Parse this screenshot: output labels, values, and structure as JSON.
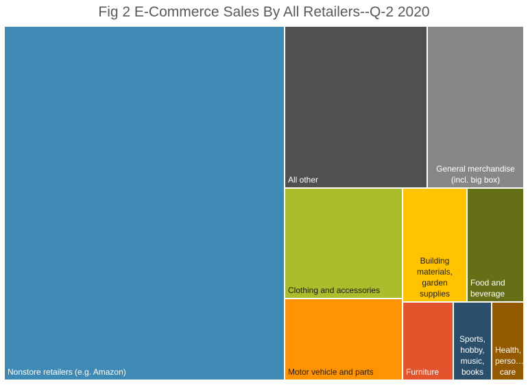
{
  "chart_data": {
    "type": "treemap",
    "title": "Fig 2 E-Commerce Sales By All Retailers--Q-2 2020",
    "items": [
      {
        "label": "Nonstore retailers (e.g. Amazon)",
        "color": "#3E8AB5",
        "text_color": "#ffffff"
      },
      {
        "label": "All other",
        "color": "#505050",
        "text_color": "#ffffff"
      },
      {
        "label": "General merchandise (incl. big box)",
        "color": "#878787",
        "text_color": "#ffffff"
      },
      {
        "label": "Clothing and accessories",
        "color": "#ABBD2A",
        "text_color": "#1a1a1a"
      },
      {
        "label": "Building materials, garden supplies",
        "color": "#FFC300",
        "text_color": "#1a1a1a"
      },
      {
        "label": "Food and beverage",
        "color": "#657016",
        "text_color": "#ffffff"
      },
      {
        "label": "Motor vehicle and parts",
        "color": "#FF9301",
        "text_color": "#1a1a1a"
      },
      {
        "label": "Furniture",
        "color": "#E4542C",
        "text_color": "#ffffff"
      },
      {
        "label": "Sports, hobby, music, books",
        "color": "#2A4F6A",
        "text_color": "#ffffff"
      },
      {
        "label": "Health, perso… care",
        "color": "#935A00",
        "text_color": "#ffffff"
      }
    ]
  }
}
